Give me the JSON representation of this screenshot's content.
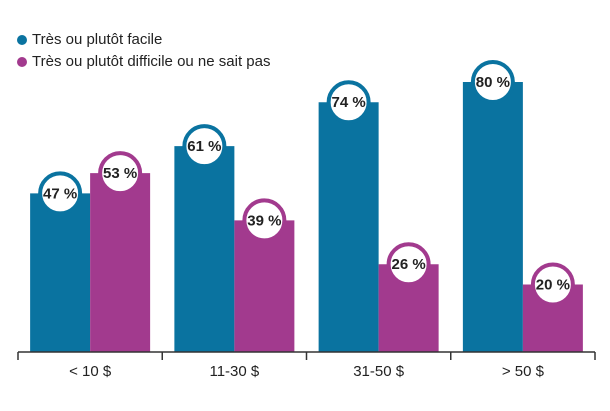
{
  "chart_data": {
    "type": "bar",
    "categories": [
      "< 10 $",
      "11-30 $",
      "31-50 $",
      "> 50 $"
    ],
    "series": [
      {
        "name": "Très ou plutôt facile",
        "color": "#0a73a0",
        "values": [
          47,
          61,
          74,
          80
        ],
        "value_labels": [
          "47 %",
          "61 %",
          "74 %",
          "80 %"
        ]
      },
      {
        "name": "Très ou plutôt difficile ou ne sait pas",
        "color": "#a23a8e",
        "values": [
          53,
          39,
          26,
          20
        ],
        "value_labels": [
          "53 %",
          "39 %",
          "26 %",
          "20 %"
        ]
      }
    ],
    "legend": "top-left"
  }
}
